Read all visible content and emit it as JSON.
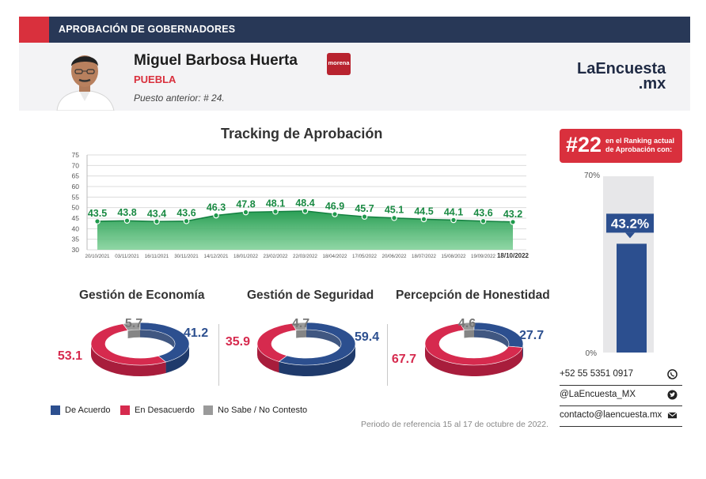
{
  "header": {
    "section_title": "APROBACIÓN DE GOBERNADORES",
    "name": "Miguel Barbosa Huerta",
    "state": "PUEBLA",
    "previous": "Puesto anterior: # 24.",
    "party": "morena",
    "brand_line1": "LaEncuesta",
    "brand_line2": ".mx"
  },
  "tracking_title": "Tracking de Aprobación",
  "chart_data": [
    {
      "type": "area",
      "title": "Tracking de Aprobación",
      "x": [
        "20/10/2021",
        "03/11/2021",
        "16/11/2021",
        "30/11/2021",
        "14/12/2021",
        "18/01/2022",
        "23/02/2022",
        "22/03/2022",
        "18/04/2022",
        "17/05/2022",
        "20/06/2022",
        "18/07/2022",
        "15/08/2022",
        "19/09/2022",
        "18/10/2022"
      ],
      "values": [
        43.5,
        43.8,
        43.4,
        43.6,
        46.3,
        47.8,
        48.1,
        48.4,
        46.9,
        45.7,
        45.1,
        44.5,
        44.1,
        43.6,
        43.2
      ],
      "yticks": [
        30,
        35,
        40,
        45,
        50,
        55,
        60,
        65,
        70,
        75
      ],
      "ylim": [
        30,
        75
      ],
      "color": "#1f9a4c"
    },
    {
      "type": "pie",
      "title": "Gestión de Economía",
      "labels": [
        "De Acuerdo",
        "En Desacuerdo",
        "No Sabe / No Contesto"
      ],
      "values": [
        41.2,
        53.1,
        5.7
      ]
    },
    {
      "type": "pie",
      "title": "Gestión de Seguridad",
      "labels": [
        "De Acuerdo",
        "En Desacuerdo",
        "No Sabe / No Contesto"
      ],
      "values": [
        59.4,
        35.9,
        4.7
      ]
    },
    {
      "type": "pie",
      "title": "Percepción de Honestidad",
      "labels": [
        "De Acuerdo",
        "En Desacuerdo",
        "No Sabe / No Contesto"
      ],
      "values": [
        27.7,
        67.7,
        4.6
      ]
    },
    {
      "type": "bar",
      "value": 43.2,
      "value_label": "43.2%",
      "ylim": [
        0,
        70
      ],
      "ytick_labels": [
        "0%",
        "70%"
      ]
    }
  ],
  "colors": {
    "agree": "#2c4f8f",
    "disagree": "#d62a4e",
    "nsnc": "#9a9a9a",
    "accent_red": "#d9303d",
    "navy": "#283857",
    "green": "#1f9a4c"
  },
  "ranking": {
    "number": "#22",
    "text": "en el Ranking actual de Aprobación con:"
  },
  "contacts": [
    {
      "text": "+52 55 5351 0917",
      "icon": "whatsapp-icon"
    },
    {
      "text": "@LaEncuesta_MX",
      "icon": "twitter-icon"
    },
    {
      "text": "contacto@laencuesta.mx",
      "icon": "mail-icon"
    }
  ],
  "legend": [
    "De Acuerdo",
    "En Desacuerdo",
    "No Sabe / No Contesto"
  ],
  "period": "Periodo de referencia 15 al 17 de octubre de 2022."
}
